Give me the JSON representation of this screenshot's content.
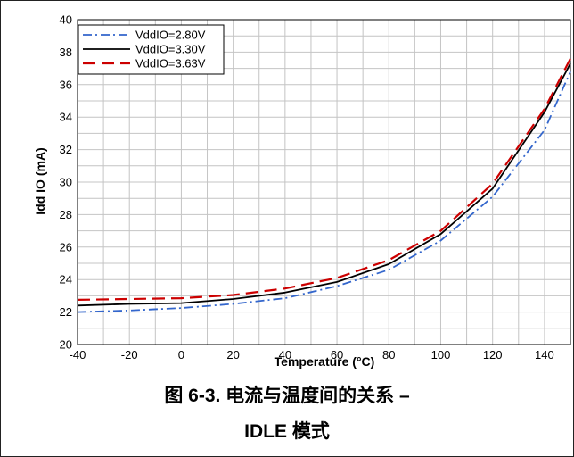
{
  "chart_data": {
    "type": "line",
    "title": "",
    "xlabel": "Temperature (°C)",
    "ylabel": "Idd IO (mA)",
    "xlim": [
      -40,
      150
    ],
    "ylim": [
      20,
      40
    ],
    "xticks": [
      -40,
      -20,
      0,
      20,
      40,
      60,
      80,
      100,
      120,
      140
    ],
    "yticks": [
      20,
      22,
      24,
      26,
      28,
      30,
      32,
      34,
      36,
      38,
      40
    ],
    "grid": true,
    "legend_position": "top-left",
    "series": [
      {
        "name": "VddIO=2.80V",
        "color": "#3366cc",
        "style": "dash-dot",
        "x": [
          -40,
          -20,
          0,
          20,
          40,
          60,
          80,
          100,
          120,
          140,
          150
        ],
        "y": [
          22.0,
          22.1,
          22.25,
          22.5,
          22.85,
          23.6,
          24.6,
          26.4,
          29.1,
          33.2,
          36.8
        ]
      },
      {
        "name": "VddIO=3.30V",
        "color": "#000000",
        "style": "solid",
        "x": [
          -40,
          -20,
          0,
          20,
          40,
          60,
          80,
          100,
          120,
          140,
          150
        ],
        "y": [
          22.4,
          22.5,
          22.55,
          22.8,
          23.2,
          23.85,
          24.95,
          26.8,
          29.6,
          34.3,
          37.3
        ]
      },
      {
        "name": "VddIO=3.63V",
        "color": "#cc0000",
        "style": "dash",
        "x": [
          -40,
          -20,
          0,
          20,
          40,
          60,
          80,
          100,
          120,
          140,
          150
        ],
        "y": [
          22.75,
          22.8,
          22.85,
          23.05,
          23.45,
          24.1,
          25.2,
          27.0,
          29.9,
          34.5,
          37.6
        ]
      }
    ]
  },
  "caption": {
    "line1": "图 6-3. 电流与温度间的关系 –",
    "line2": "IDLE 模式"
  }
}
